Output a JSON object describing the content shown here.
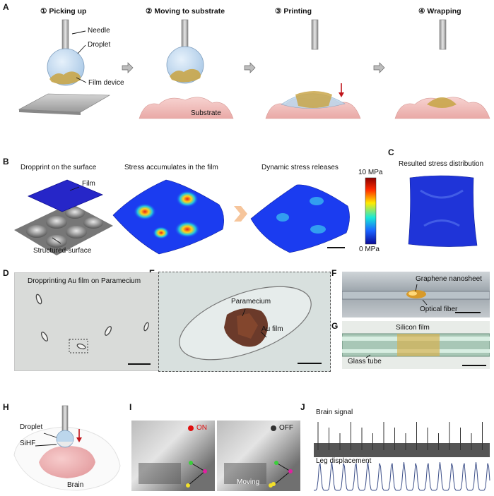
{
  "panels": {
    "A": "A",
    "B": "B",
    "C": "C",
    "D": "D",
    "E": "E",
    "F": "F",
    "G": "G",
    "H": "H",
    "I": "I",
    "J": "J"
  },
  "panelA": {
    "steps": [
      {
        "num": "①",
        "title": "Picking up"
      },
      {
        "num": "②",
        "title": "Moving to substrate"
      },
      {
        "num": "③",
        "title": "Printing"
      },
      {
        "num": "④",
        "title": "Wrapping"
      }
    ],
    "labels": {
      "needle": "Needle",
      "droplet": "Droplet",
      "film_device": "Film device",
      "substrate": "Substrate"
    }
  },
  "panelB": {
    "titles": {
      "dropprint": "Dropprint on the surface",
      "accumulate": "Stress accumulates in the film",
      "release": "Dynamic stress releases"
    },
    "labels": {
      "film": "Film",
      "structured_surface": "Structured-surface"
    },
    "colorbar": {
      "max": "10 MPa",
      "min": "0 MPa"
    }
  },
  "panelC": {
    "title": "Resulted stress distribution"
  },
  "panelD": {
    "title": "Dropprinting Au film on Paramecium"
  },
  "panelE": {
    "paramecium": "Paramecium",
    "au_film": "Au film"
  },
  "panelF": {
    "graphene": "Graphene nanosheet",
    "optical_fiber": "Optical fiber"
  },
  "panelG": {
    "silicon_film": "Silicon film",
    "glass_tube": "Glass tube"
  },
  "panelH": {
    "droplet": "Droplet",
    "sihf": "SiHF",
    "brain": "Brain"
  },
  "panelI": {
    "on": "ON",
    "off": "OFF",
    "moving": "Moving"
  },
  "panelJ": {
    "brain_signal": "Brain signal",
    "leg_displacement": "Leg displacement"
  },
  "colors": {
    "droplet": "#bcd6ec",
    "film": "#c9a64a",
    "substrate": "#f3c6c4",
    "stress_high": "#c40000",
    "stress_low": "#1a1ad6",
    "arrow_red": "#c0141a",
    "on_dot": "#e01010",
    "off_dot": "#333333",
    "trace": "#3b4e88"
  }
}
